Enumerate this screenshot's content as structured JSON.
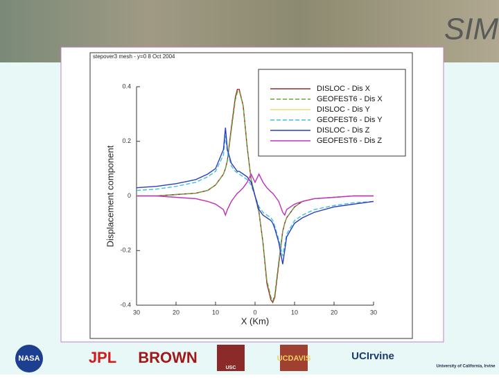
{
  "slide": {
    "banner": "SIM",
    "logos": [
      "NASA",
      "JPL",
      "BROWN",
      "USC",
      "UCDAVIS",
      "UCIrvine",
      "University of California, Irvine"
    ]
  },
  "chart_data": {
    "type": "line",
    "title": "stepover3 mesh - y=0   8 Oct 2004",
    "x_label": "X (Km)",
    "y_label": "Displacement component",
    "xlim": [
      -30,
      30
    ],
    "ylim": [
      -0.4,
      0.4
    ],
    "xticks": [
      {
        "value": -30,
        "label": "30"
      },
      {
        "value": -20,
        "label": "20"
      },
      {
        "value": -10,
        "label": "10"
      },
      0,
      10,
      20,
      30
    ],
    "yticks": [
      {
        "value": -0.4,
        "label": "-0.4"
      },
      {
        "value": -0.2,
        "label": "-0.2"
      },
      0,
      0.2,
      0.4
    ],
    "legend": "upper right",
    "x": [
      -30,
      -25,
      -20,
      -15,
      -12,
      -10,
      -8,
      -7.5,
      -7,
      -6,
      -5,
      -4.5,
      -4,
      -3,
      -2,
      -1,
      0,
      1,
      2,
      3,
      4,
      4.5,
      5,
      6,
      7,
      7.5,
      8,
      10,
      12,
      15,
      20,
      25,
      30
    ],
    "series": [
      {
        "name": "DISLOC - Dis X",
        "color": "#9a2b2b",
        "dash": false,
        "values": [
          0,
          0,
          0.005,
          0.01,
          0.02,
          0.04,
          0.08,
          0.1,
          0.13,
          0.25,
          0.36,
          0.39,
          0.39,
          0.33,
          0.18,
          0.06,
          0,
          -0.06,
          -0.17,
          -0.32,
          -0.38,
          -0.39,
          -0.37,
          -0.25,
          -0.13,
          -0.1,
          -0.08,
          -0.04,
          -0.02,
          -0.01,
          -0.005,
          0,
          0
        ]
      },
      {
        "name": "GEOFEST6 - Dis X",
        "color": "#6aa83a",
        "dash": true,
        "values": [
          0,
          0,
          0.005,
          0.01,
          0.02,
          0.04,
          0.08,
          0.1,
          0.13,
          0.24,
          0.35,
          0.38,
          0.385,
          0.33,
          0.18,
          0.06,
          0,
          -0.06,
          -0.17,
          -0.31,
          -0.37,
          -0.385,
          -0.36,
          -0.24,
          -0.13,
          -0.1,
          -0.08,
          -0.04,
          -0.02,
          -0.01,
          -0.005,
          0,
          0
        ]
      },
      {
        "name": "DISLOC - Dis Y",
        "color": "#e6e070",
        "dash": false,
        "values": [
          0,
          0,
          -0.005,
          -0.01,
          -0.02,
          -0.03,
          -0.05,
          -0.07,
          -0.05,
          -0.02,
          0,
          0.01,
          0.015,
          0.03,
          0.05,
          0.08,
          0.05,
          0.08,
          0.05,
          0.03,
          0.015,
          0.01,
          0,
          -0.02,
          -0.06,
          -0.07,
          -0.05,
          -0.03,
          -0.02,
          -0.01,
          -0.005,
          0,
          0
        ]
      },
      {
        "name": "GEOFEST6 - Dis Y",
        "color": "#3cc0e0",
        "dash": true,
        "values": [
          0.02,
          0.025,
          0.035,
          0.05,
          0.07,
          0.09,
          0.15,
          0.22,
          0.16,
          0.11,
          0.09,
          0.085,
          0.08,
          0.07,
          0.06,
          0.04,
          0,
          -0.04,
          -0.06,
          -0.07,
          -0.08,
          -0.09,
          -0.11,
          -0.16,
          -0.22,
          -0.18,
          -0.14,
          -0.09,
          -0.07,
          -0.05,
          -0.035,
          -0.025,
          -0.02
        ]
      },
      {
        "name": "DISLOC - Dis Z",
        "color": "#2a3cc0",
        "dash": false,
        "values": [
          0.03,
          0.035,
          0.045,
          0.06,
          0.08,
          0.1,
          0.17,
          0.25,
          0.17,
          0.12,
          0.1,
          0.09,
          0.09,
          0.08,
          0.07,
          0.05,
          0,
          -0.05,
          -0.07,
          -0.08,
          -0.09,
          -0.1,
          -0.12,
          -0.17,
          -0.25,
          -0.2,
          -0.15,
          -0.1,
          -0.08,
          -0.06,
          -0.04,
          -0.03,
          -0.02
        ]
      },
      {
        "name": "GEOFEST6 - Dis Z",
        "color": "#c030c8",
        "dash": false,
        "values": [
          0,
          0,
          -0.005,
          -0.01,
          -0.02,
          -0.03,
          -0.05,
          -0.07,
          -0.05,
          -0.02,
          0,
          0.01,
          0.015,
          0.03,
          0.05,
          0.08,
          0.05,
          0.08,
          0.05,
          0.03,
          0.015,
          0.01,
          0,
          -0.02,
          -0.06,
          -0.07,
          -0.05,
          -0.03,
          -0.02,
          -0.01,
          -0.005,
          0,
          0
        ]
      }
    ]
  }
}
